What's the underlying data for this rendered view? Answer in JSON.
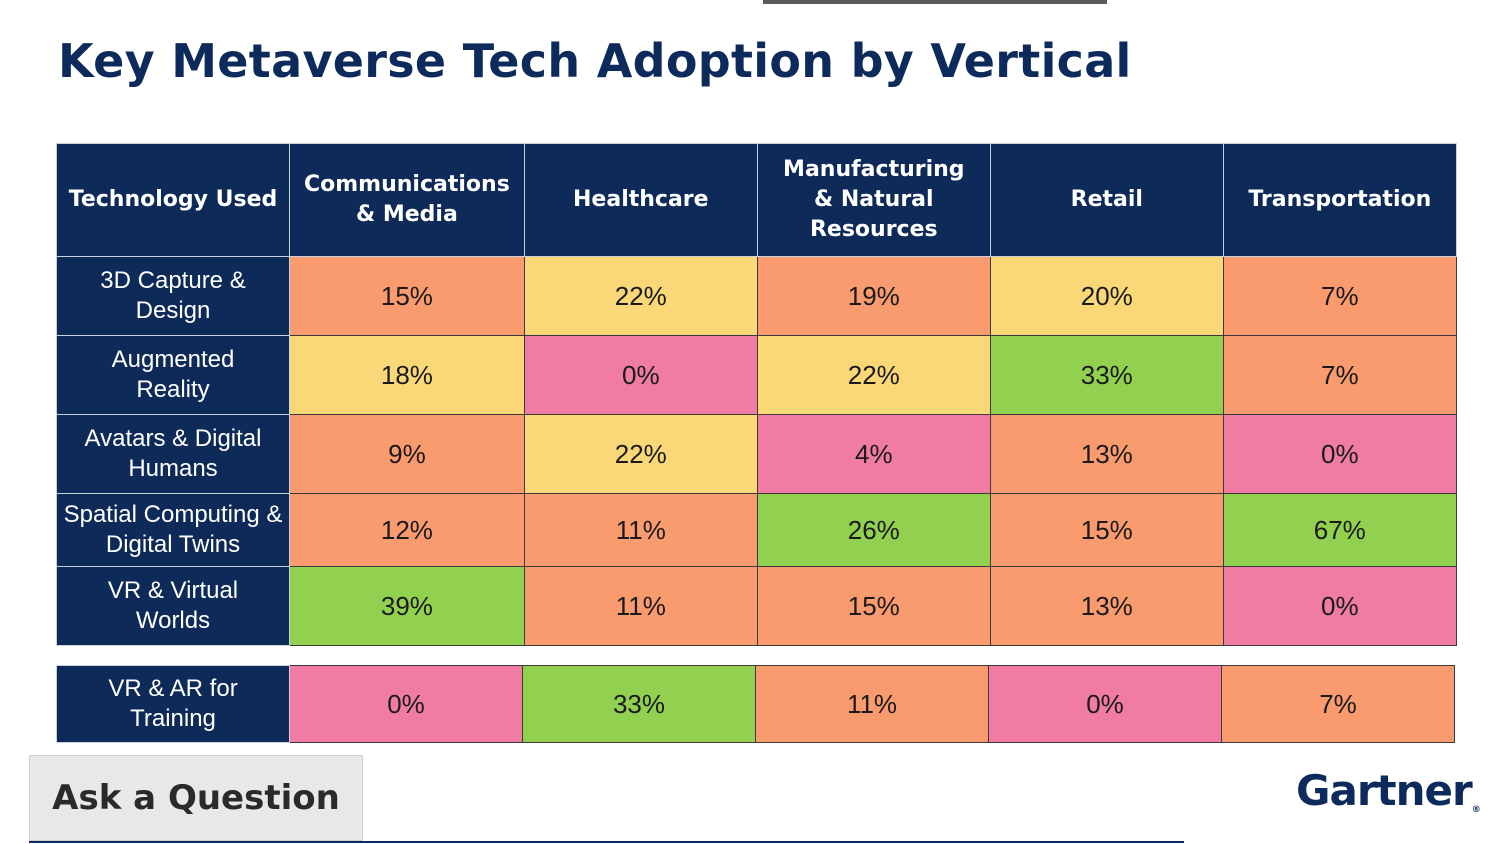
{
  "title": "Key Metaverse Tech Adoption by Vertical",
  "columns": [
    "Technology Used",
    "Communications & Media",
    "Healthcare",
    "Manufacturing & Natural Resources",
    "Retail",
    "Transportation"
  ],
  "rows": [
    {
      "label": "3D Capture & Design",
      "values": [
        "15%",
        "22%",
        "19%",
        "20%",
        "7%"
      ],
      "colors": [
        "orange",
        "yellow",
        "orange",
        "yellow",
        "orange"
      ]
    },
    {
      "label": "Augmented Reality",
      "values": [
        "18%",
        "0%",
        "22%",
        "33%",
        "7%"
      ],
      "colors": [
        "yellow",
        "pink",
        "yellow",
        "green",
        "orange"
      ]
    },
    {
      "label": "Avatars & Digital Humans",
      "values": [
        "9%",
        "22%",
        "4%",
        "13%",
        "0%"
      ],
      "colors": [
        "orange",
        "yellow",
        "pink",
        "orange",
        "pink"
      ]
    },
    {
      "label": "Spatial Computing & Digital Twins",
      "values": [
        "12%",
        "11%",
        "26%",
        "15%",
        "67%"
      ],
      "colors": [
        "orange",
        "orange",
        "green",
        "orange",
        "green"
      ]
    },
    {
      "label": "VR & Virtual Worlds",
      "values": [
        "39%",
        "11%",
        "15%",
        "13%",
        "0%"
      ],
      "colors": [
        "green",
        "orange",
        "orange",
        "orange",
        "pink"
      ]
    }
  ],
  "training_row": {
    "label": "VR & AR for Training",
    "values": [
      "0%",
      "33%",
      "11%",
      "0%",
      "7%"
    ],
    "colors": [
      "pink",
      "green",
      "orange",
      "pink",
      "orange"
    ]
  },
  "palette": {
    "green": "#92d050",
    "yellow": "#fad877",
    "orange": "#f99b6e",
    "pink": "#f07ca4",
    "header_navy": "#0e2a58"
  },
  "ask_button": "Ask a Question",
  "brand": "Gartner",
  "brand_mark": "®"
}
